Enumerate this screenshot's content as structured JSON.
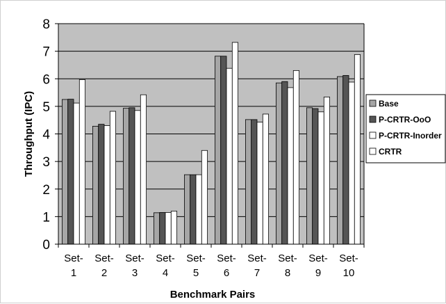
{
  "chart_data": {
    "type": "bar",
    "title": "",
    "xlabel": "Benchmark Pairs",
    "ylabel": "Throughput (IPC)",
    "ylim": [
      0,
      8
    ],
    "yticks": [
      "0",
      "1",
      "2",
      "3",
      "4",
      "5",
      "6",
      "7",
      "8"
    ],
    "grid": true,
    "legend_position": "right",
    "categories": [
      {
        "line1": "Set-",
        "line2": "1"
      },
      {
        "line1": "Set-",
        "line2": "2"
      },
      {
        "line1": "Set-",
        "line2": "3"
      },
      {
        "line1": "Set-",
        "line2": "4"
      },
      {
        "line1": "Set-",
        "line2": "5"
      },
      {
        "line1": "Set-",
        "line2": "6"
      },
      {
        "line1": "Set-",
        "line2": "7"
      },
      {
        "line1": "Set-",
        "line2": "8"
      },
      {
        "line1": "Set-",
        "line2": "9"
      },
      {
        "line1": "Set-",
        "line2": "10"
      }
    ],
    "series": [
      {
        "name": "Base",
        "color": "#a6a6a6",
        "values": [
          5.25,
          4.28,
          4.93,
          1.14,
          2.52,
          6.82,
          4.52,
          5.85,
          4.95,
          6.08
        ]
      },
      {
        "name": "P-CRTR-OoO",
        "color": "#555555",
        "values": [
          5.26,
          4.35,
          4.95,
          1.15,
          2.52,
          6.82,
          4.52,
          5.9,
          4.92,
          6.12
        ]
      },
      {
        "name": "P-CRTR-Inorder",
        "color": "#ffffff",
        "values": [
          5.12,
          4.3,
          4.85,
          1.15,
          2.52,
          6.38,
          4.43,
          5.68,
          4.8,
          5.88
        ]
      },
      {
        "name": "CRTR",
        "color": "#ffffff",
        "values": [
          5.97,
          4.82,
          5.42,
          1.2,
          3.4,
          7.32,
          4.72,
          6.3,
          5.34,
          6.88
        ]
      }
    ],
    "plot_area_color": "#c0c0c0"
  }
}
